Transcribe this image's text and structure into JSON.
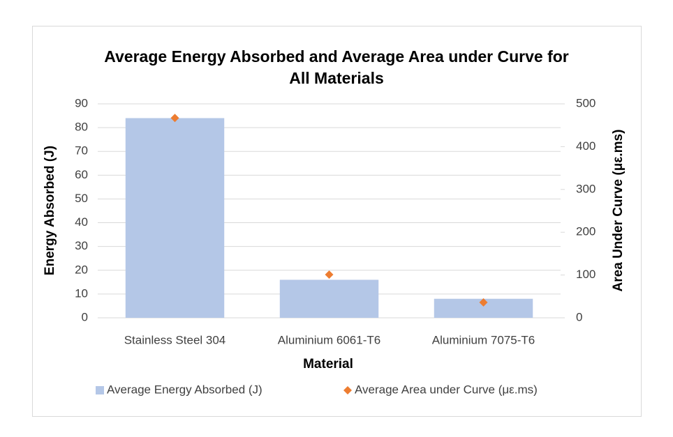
{
  "chart_data": {
    "type": "bar",
    "title": "Average Energy Absorbed and Average Area under Curve for All Materials",
    "x_label": "Material",
    "y_label": "Energy Absorbed (J)",
    "y2_label": "Area Under Curve (με.ms)",
    "categories": [
      "Stainless Steel 304",
      "Aluminium 6061-T6",
      "Aluminium 7075-T6"
    ],
    "series": [
      {
        "name": "Average Energy Absorbed (J)",
        "type": "bar",
        "color": "#b4c7e7",
        "values": [
          84,
          16,
          8
        ]
      },
      {
        "name": "Average Area under Curve (με.ms)",
        "type": "scatter",
        "color": "#ed7d31",
        "axis": "y2",
        "values": [
          467,
          101,
          36
        ]
      }
    ],
    "ylim": [
      0,
      90
    ],
    "yticks": [
      0,
      10,
      20,
      30,
      40,
      50,
      60,
      70,
      80,
      90
    ],
    "y2lim": [
      0,
      500
    ],
    "y2ticks": [
      0,
      100,
      200,
      300,
      400,
      500
    ],
    "grid": true,
    "legend": "bottom"
  }
}
